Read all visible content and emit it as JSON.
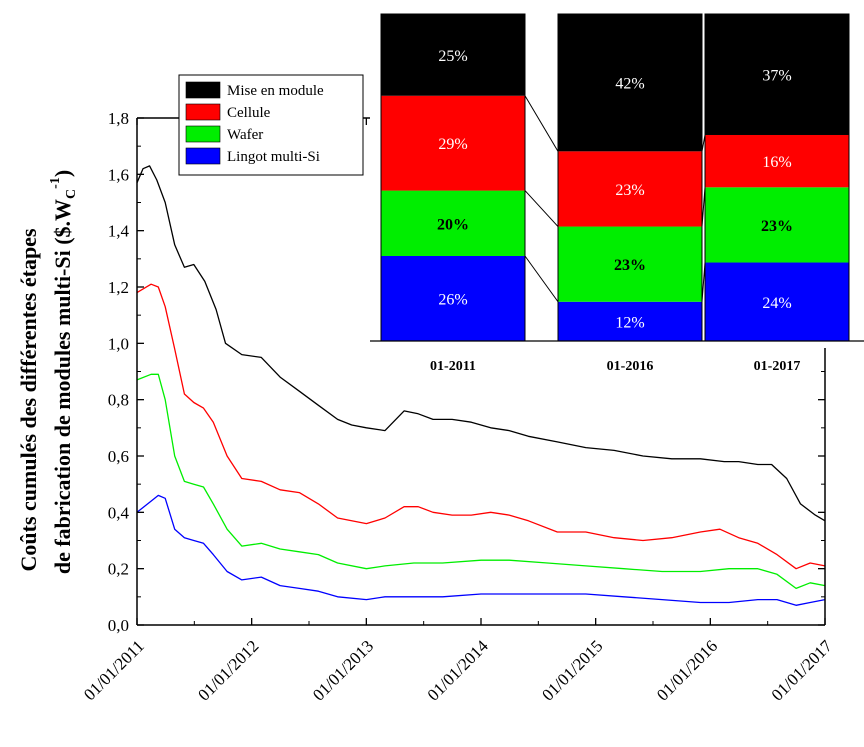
{
  "chart_data": [
    {
      "type": "line",
      "ylabel_line1": "Coûts cumulés des différentes étapes",
      "ylabel_line2_main": "de fabrication de modules multi-Si ($.W",
      "ylabel_sub": "C",
      "ylabel_sup": "-1",
      "ylabel_close": ")",
      "ylim": [
        0,
        1.8
      ],
      "xlim": [
        "2011-01-01",
        "2017-01-01"
      ],
      "y_ticks": [
        "0,0",
        "0,2",
        "0,4",
        "0,6",
        "0,8",
        "1,0",
        "1,2",
        "1,4",
        "1,6",
        "1,8"
      ],
      "x_ticks": [
        "01/01/2011",
        "01/01/2012",
        "01/01/2013",
        "01/01/2014",
        "01/01/2015",
        "01/01/2016",
        "01/01/2017"
      ],
      "legend": [
        "Mise en module",
        "Cellule",
        "Wafer",
        "Lingot multi-Si"
      ],
      "legend_placement": "top-left",
      "grid": false,
      "series": [
        {
          "name": "Mise en module",
          "color": "#000000",
          "x": [
            "2011-01-01",
            "2011-01-20",
            "2011-02-10",
            "2011-03-05",
            "2011-04-01",
            "2011-05-01",
            "2011-06-01",
            "2011-07-01",
            "2011-08-05",
            "2011-09-10",
            "2011-10-10",
            "2011-12-01",
            "2012-02-01",
            "2012-04-01",
            "2012-06-01",
            "2012-08-01",
            "2012-10-01",
            "2012-11-15",
            "2013-01-01",
            "2013-03-01",
            "2013-05-01",
            "2013-06-15",
            "2013-08-01",
            "2013-10-01",
            "2013-12-01",
            "2014-02-01",
            "2014-04-01",
            "2014-06-01",
            "2014-09-01",
            "2014-12-01",
            "2015-03-01",
            "2015-06-01",
            "2015-09-01",
            "2015-12-01",
            "2016-02-15",
            "2016-04-01",
            "2016-06-01",
            "2016-07-15",
            "2016-09-01",
            "2016-10-15",
            "2016-12-01",
            "2017-01-01"
          ],
          "values": [
            1.57,
            1.62,
            1.63,
            1.58,
            1.5,
            1.35,
            1.27,
            1.28,
            1.22,
            1.12,
            1.0,
            0.96,
            0.95,
            0.88,
            0.83,
            0.78,
            0.73,
            0.71,
            0.7,
            0.69,
            0.76,
            0.75,
            0.73,
            0.73,
            0.72,
            0.7,
            0.69,
            0.67,
            0.65,
            0.63,
            0.62,
            0.6,
            0.59,
            0.59,
            0.58,
            0.58,
            0.57,
            0.57,
            0.52,
            0.43,
            0.39,
            0.37
          ]
        },
        {
          "name": "Cellule",
          "color": "#ff0000",
          "x": [
            "2011-01-01",
            "2011-02-15",
            "2011-03-10",
            "2011-04-01",
            "2011-05-01",
            "2011-06-01",
            "2011-07-01",
            "2011-08-01",
            "2011-09-01",
            "2011-10-15",
            "2011-12-01",
            "2012-02-01",
            "2012-04-01",
            "2012-06-01",
            "2012-08-01",
            "2012-10-01",
            "2013-01-01",
            "2013-03-01",
            "2013-05-01",
            "2013-06-15",
            "2013-08-01",
            "2013-10-01",
            "2013-12-01",
            "2014-02-01",
            "2014-04-01",
            "2014-06-01",
            "2014-09-01",
            "2014-12-01",
            "2015-03-01",
            "2015-06-01",
            "2015-09-01",
            "2015-12-01",
            "2016-02-01",
            "2016-04-01",
            "2016-06-01",
            "2016-08-01",
            "2016-10-01",
            "2016-11-15",
            "2017-01-01"
          ],
          "values": [
            1.18,
            1.21,
            1.2,
            1.13,
            0.98,
            0.82,
            0.79,
            0.77,
            0.72,
            0.6,
            0.52,
            0.51,
            0.48,
            0.47,
            0.43,
            0.38,
            0.36,
            0.38,
            0.42,
            0.42,
            0.4,
            0.39,
            0.39,
            0.4,
            0.39,
            0.37,
            0.33,
            0.33,
            0.31,
            0.3,
            0.31,
            0.33,
            0.34,
            0.31,
            0.29,
            0.25,
            0.2,
            0.22,
            0.21
          ]
        },
        {
          "name": "Wafer",
          "color": "#00ee00",
          "x": [
            "2011-01-01",
            "2011-02-15",
            "2011-03-10",
            "2011-04-01",
            "2011-05-01",
            "2011-06-01",
            "2011-07-01",
            "2011-08-01",
            "2011-09-01",
            "2011-10-15",
            "2011-12-01",
            "2012-02-01",
            "2012-04-01",
            "2012-06-01",
            "2012-08-01",
            "2012-10-01",
            "2013-01-01",
            "2013-03-01",
            "2013-06-01",
            "2013-09-01",
            "2014-01-01",
            "2014-04-01",
            "2014-08-01",
            "2014-12-01",
            "2015-04-01",
            "2015-08-01",
            "2015-12-01",
            "2016-03-01",
            "2016-06-01",
            "2016-08-01",
            "2016-10-01",
            "2016-11-15",
            "2017-01-01"
          ],
          "values": [
            0.87,
            0.89,
            0.89,
            0.8,
            0.6,
            0.51,
            0.5,
            0.49,
            0.43,
            0.34,
            0.28,
            0.29,
            0.27,
            0.26,
            0.25,
            0.22,
            0.2,
            0.21,
            0.22,
            0.22,
            0.23,
            0.23,
            0.22,
            0.21,
            0.2,
            0.19,
            0.19,
            0.2,
            0.2,
            0.18,
            0.13,
            0.15,
            0.14
          ]
        },
        {
          "name": "Lingot multi-Si",
          "color": "#0000ff",
          "x": [
            "2011-01-01",
            "2011-02-15",
            "2011-03-10",
            "2011-04-01",
            "2011-05-01",
            "2011-06-01",
            "2011-07-01",
            "2011-08-01",
            "2011-09-01",
            "2011-10-15",
            "2011-12-01",
            "2012-02-01",
            "2012-04-01",
            "2012-06-01",
            "2012-08-01",
            "2012-10-01",
            "2013-01-01",
            "2013-03-01",
            "2013-06-01",
            "2013-09-01",
            "2014-01-01",
            "2014-04-01",
            "2014-08-01",
            "2014-12-01",
            "2015-04-01",
            "2015-08-01",
            "2015-12-01",
            "2016-03-01",
            "2016-06-01",
            "2016-08-01",
            "2016-10-01",
            "2016-11-15",
            "2017-01-01"
          ],
          "values": [
            0.4,
            0.44,
            0.46,
            0.45,
            0.34,
            0.31,
            0.3,
            0.29,
            0.25,
            0.19,
            0.16,
            0.17,
            0.14,
            0.13,
            0.12,
            0.1,
            0.09,
            0.1,
            0.1,
            0.1,
            0.11,
            0.11,
            0.11,
            0.11,
            0.1,
            0.09,
            0.08,
            0.08,
            0.09,
            0.09,
            0.07,
            0.08,
            0.09
          ]
        }
      ]
    },
    {
      "type": "bar",
      "stacked": true,
      "normalized": true,
      "categories": [
        "01-2011",
        "01-2016",
        "01-2017"
      ],
      "series": [
        {
          "name": "Lingot multi-Si",
          "color": "#0000ff",
          "values": [
            26,
            12,
            24
          ],
          "labels": [
            "26%",
            "12%",
            "24%"
          ],
          "label_color": "#ffffff",
          "bold": [
            false,
            false,
            false
          ]
        },
        {
          "name": "Wafer",
          "color": "#00ee00",
          "values": [
            20,
            23,
            23
          ],
          "labels": [
            "20%",
            "23%",
            "23%"
          ],
          "label_color": "#000000",
          "bold": [
            true,
            true,
            true
          ]
        },
        {
          "name": "Cellule",
          "color": "#ff0000",
          "values": [
            29,
            23,
            16
          ],
          "labels": [
            "29%",
            "23%",
            "16%"
          ],
          "label_color": "#ffffff",
          "bold": [
            false,
            false,
            false
          ]
        },
        {
          "name": "Mise en module",
          "color": "#000000",
          "values": [
            25,
            42,
            37
          ],
          "labels": [
            "25%",
            "42%",
            "37%"
          ],
          "label_color": "#ffffff",
          "bold": [
            false,
            false,
            false
          ]
        }
      ]
    }
  ]
}
